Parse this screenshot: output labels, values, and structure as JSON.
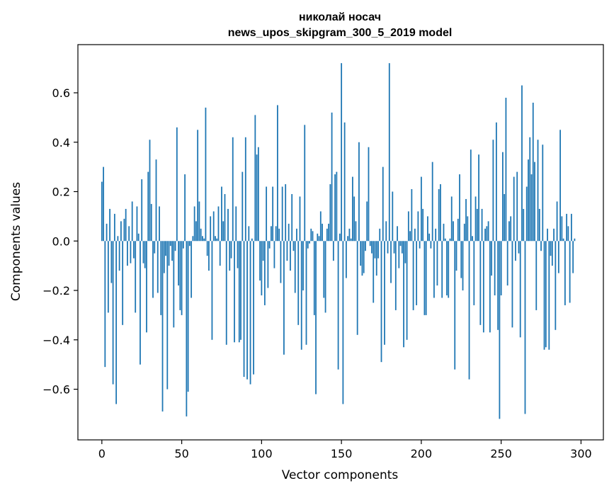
{
  "chart_data": {
    "type": "bar",
    "title_line1": "николай носач",
    "title_line2": "news_upos_skipgram_300_5_2019 model",
    "xlabel": "Vector components",
    "ylabel": "Components values",
    "xlim": [
      -15,
      314
    ],
    "ylim": [
      -0.805,
      0.795
    ],
    "xticks": [
      0,
      50,
      100,
      150,
      200,
      250,
      300
    ],
    "xtick_labels": [
      "0",
      "50",
      "100",
      "150",
      "200",
      "250",
      "300"
    ],
    "yticks": [
      -0.6,
      -0.4,
      -0.2,
      0.0,
      0.2,
      0.4,
      0.6
    ],
    "ytick_labels": [
      "−0.6",
      "−0.4",
      "−0.2",
      "0.0",
      "0.2",
      "0.4",
      "0.6"
    ],
    "bar_color": "#1f77b4",
    "values": [
      0.24,
      0.3,
      -0.51,
      0.07,
      -0.29,
      0.13,
      -0.17,
      -0.58,
      0.11,
      -0.66,
      0.02,
      -0.12,
      0.08,
      -0.34,
      0.09,
      0.13,
      -0.1,
      0.06,
      -0.09,
      0.16,
      -0.07,
      -0.29,
      0.14,
      0.03,
      -0.5,
      0.25,
      -0.09,
      -0.11,
      -0.37,
      0.28,
      0.41,
      0.15,
      -0.23,
      -0.05,
      0.33,
      -0.21,
      0.14,
      -0.3,
      -0.69,
      -0.13,
      -0.06,
      -0.6,
      -0.1,
      -0.02,
      -0.08,
      -0.35,
      -0.04,
      0.46,
      -0.18,
      -0.28,
      -0.3,
      -0.03,
      0.27,
      -0.71,
      -0.61,
      -0.02,
      -0.23,
      0.02,
      0.14,
      0.08,
      0.45,
      0.16,
      0.05,
      0.02,
      0.01,
      0.54,
      -0.06,
      -0.12,
      0.1,
      -0.4,
      0.12,
      0.02,
      0.01,
      0.14,
      -0.1,
      0.22,
      0.08,
      0.19,
      -0.42,
      0.13,
      -0.12,
      -0.07,
      0.42,
      -0.41,
      0.14,
      -0.11,
      -0.41,
      -0.4,
      0.28,
      -0.55,
      0.42,
      -0.56,
      0.06,
      -0.58,
      0.01,
      -0.54,
      0.51,
      0.35,
      0.38,
      -0.16,
      -0.22,
      -0.08,
      -0.26,
      0.22,
      -0.19,
      -0.03,
      0.06,
      0.22,
      -0.11,
      0.06,
      0.55,
      0.05,
      -0.17,
      0.22,
      -0.46,
      0.23,
      -0.08,
      0.07,
      -0.12,
      0.19,
      -0.04,
      -0.21,
      0.05,
      -0.34,
      0.18,
      -0.44,
      -0.2,
      0.47,
      -0.42,
      -0.03,
      -0.01,
      0.05,
      0.04,
      -0.3,
      -0.62,
      0.03,
      0.02,
      0.12,
      0.07,
      -0.23,
      -0.29,
      0.05,
      0.07,
      0.23,
      0.52,
      -0.08,
      0.27,
      0.28,
      -0.52,
      0.03,
      0.72,
      -0.66,
      0.48,
      -0.15,
      0.02,
      0.05,
      0.01,
      0.26,
      0.18,
      0.08,
      -0.38,
      0.4,
      -0.1,
      -0.14,
      -0.13,
      -0.04,
      0.16,
      0.38,
      -0.02,
      -0.05,
      -0.25,
      -0.07,
      -0.14,
      -0.07,
      0.05,
      -0.49,
      0.3,
      -0.42,
      0.08,
      -0.05,
      0.72,
      -0.17,
      0.2,
      -0.05,
      -0.28,
      0.06,
      -0.11,
      -0.02,
      -0.05,
      -0.43,
      -0.09,
      -0.4,
      0.12,
      0.04,
      0.21,
      -0.28,
      0.05,
      -0.26,
      0.12,
      -0.03,
      0.26,
      0.13,
      -0.3,
      -0.3,
      0.1,
      0.03,
      -0.03,
      0.32,
      -0.23,
      0.05,
      -0.18,
      0.21,
      0.23,
      -0.23,
      0.07,
      0.01,
      -0.22,
      -0.23,
      0.01,
      0.18,
      0.08,
      -0.52,
      -0.12,
      0.09,
      0.27,
      -0.15,
      -0.2,
      0.07,
      0.17,
      0.1,
      -0.56,
      0.37,
      0.02,
      -0.26,
      0.18,
      0.13,
      0.35,
      -0.34,
      0.13,
      -0.37,
      0.05,
      0.06,
      0.08,
      -0.37,
      -0.14,
      0.41,
      -0.22,
      0.48,
      -0.36,
      -0.72,
      -0.22,
      0.36,
      0.19,
      0.58,
      -0.18,
      0.08,
      0.1,
      -0.35,
      0.26,
      -0.08,
      0.28,
      -0.05,
      -0.39,
      0.63,
      0.13,
      -0.7,
      0.22,
      0.33,
      0.42,
      0.27,
      0.56,
      0.32,
      -0.28,
      0.41,
      0.13,
      -0.04,
      0.39,
      -0.44,
      -0.43,
      0.05,
      -0.44,
      -0.06,
      -0.1,
      0.05,
      -0.36,
      0.16,
      -0.13,
      0.45,
      0.1,
      0.01,
      -0.26,
      0.11,
      0.06,
      -0.25,
      0.11,
      -0.13,
      0.01
    ]
  }
}
